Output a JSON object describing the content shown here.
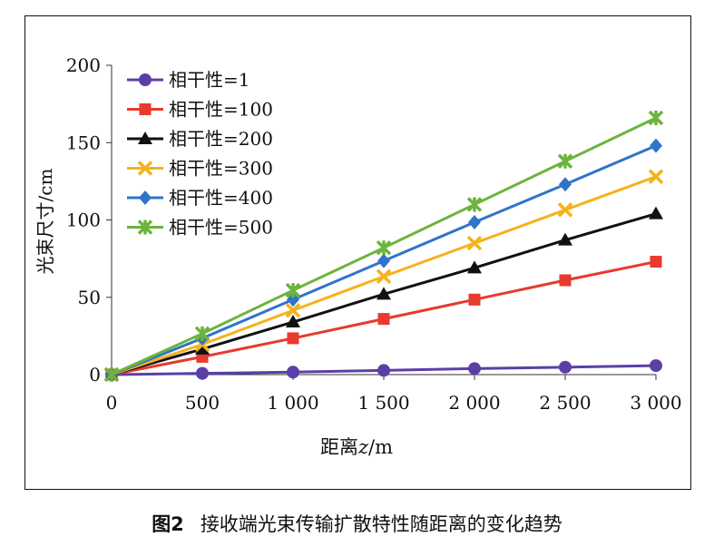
{
  "chart_data": {
    "type": "line",
    "title": "",
    "xlabel": "距离",
    "xlabel_var": "z",
    "xlabel_unit": "/m",
    "ylabel": "光束尺寸/cm",
    "x": [
      0,
      500,
      1000,
      1500,
      2000,
      2500,
      3000
    ],
    "x_tick_labels": [
      "0",
      "500",
      "1 000",
      "1 500",
      "2 000",
      "2 500",
      "3 000"
    ],
    "y_ticks": [
      0,
      50,
      100,
      150,
      200
    ],
    "y_tick_labels": [
      "0",
      "50",
      "100",
      "150",
      "200"
    ],
    "ylim": [
      0,
      200
    ],
    "grid": false,
    "legend_position": "top-left",
    "series": [
      {
        "name": "相干性=1",
        "color": "#5b3fa6",
        "marker": "circle",
        "values": [
          0,
          0.8,
          1.6,
          2.7,
          3.9,
          4.8,
          5.8
        ]
      },
      {
        "name": "相干性=100",
        "color": "#e83a2d",
        "marker": "square",
        "values": [
          0,
          11.5,
          23.5,
          36,
          48.5,
          61,
          73
        ]
      },
      {
        "name": "相干性=200",
        "color": "#111111",
        "marker": "triangle",
        "values": [
          0,
          16.5,
          34,
          52,
          69,
          87,
          104
        ]
      },
      {
        "name": "相干性=300",
        "color": "#f5b21b",
        "marker": "x",
        "values": [
          0,
          19.5,
          41.5,
          63.5,
          85,
          106.5,
          128
        ]
      },
      {
        "name": "相干性=400",
        "color": "#2f74c9",
        "marker": "diamond",
        "values": [
          0,
          23.5,
          48.5,
          73.5,
          98.5,
          123,
          148
        ]
      },
      {
        "name": "相干性=500",
        "color": "#6cb43c",
        "marker": "star",
        "values": [
          0,
          26.5,
          54.5,
          82,
          110,
          138,
          166
        ]
      }
    ]
  },
  "caption": {
    "figure_label": "图2",
    "text": "接收端光束传输扩散特性随距离的变化趋势"
  }
}
